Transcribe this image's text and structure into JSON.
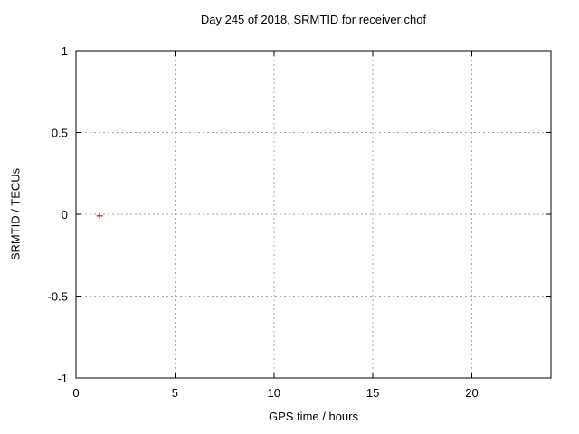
{
  "chart_data": {
    "type": "scatter",
    "title": "Day 245 of 2018, SRMTID for receiver chof",
    "xlabel": "GPS time / hours",
    "ylabel": "SRMTID / TECUs",
    "xlim": [
      0,
      24
    ],
    "ylim": [
      -1,
      1
    ],
    "xticks": {
      "values": [
        0,
        5,
        10,
        15,
        20
      ],
      "labels": [
        "0",
        "5",
        "10",
        "15",
        "20"
      ]
    },
    "yticks": {
      "values": [
        -1,
        -0.5,
        0,
        0.5,
        1
      ],
      "labels": [
        "-1",
        "-0.5",
        "0",
        "0.5",
        "1"
      ]
    },
    "grid": true,
    "legend": false,
    "series": [
      {
        "name": "SRMTID",
        "marker": "plus",
        "color": "#ff0000",
        "points": [
          {
            "x": 1.2,
            "y": -0.01
          }
        ]
      }
    ],
    "colors": {
      "background": "#ffffff",
      "axis": "#000000",
      "grid": "#a8a8a8",
      "text": "#000000"
    }
  }
}
